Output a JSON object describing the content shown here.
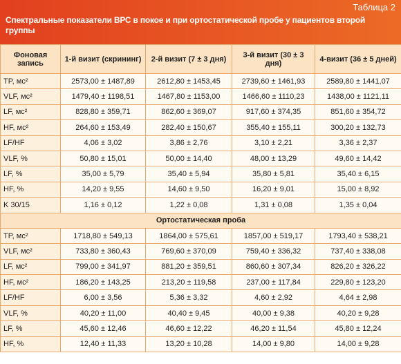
{
  "header": {
    "table_label": "Таблица 2",
    "title": "Спектральные показатели ВРС в покое и при ортостатической пробе у пациентов второй группы"
  },
  "table": {
    "columns": [
      "Фоновая запись",
      "1-й визит (скрининг)",
      "2-й визит (7 ± 3 дня)",
      "3-й визит (30 ± 3 дня)",
      "4-визит (36 ± 5 дней)"
    ],
    "rows": [
      [
        "TP, мс²",
        "2573,00 ± 1487,89",
        "2612,80 ± 1453,45",
        "2739,60 ± 1461,93",
        "2589,80 ± 1441,07"
      ],
      [
        "VLF, мс²",
        "1479,40 ± 1198,51",
        "1467,80 ± 1153,00",
        "1466,60 ± 1110,23",
        "1438,00 ± 1121,11"
      ],
      [
        "LF, мс²",
        "828,80 ± 359,71",
        "862,60 ± 369,07",
        "917,60 ± 374,35",
        "851,60 ± 354,72"
      ],
      [
        "HF, мс²",
        "264,60 ± 153,49",
        "282,40 ± 150,67",
        "355,40 ± 155,11",
        "300,20 ± 132,73"
      ],
      [
        "LF/HF",
        "4,06 ± 3,02",
        "3,86 ± 2,76",
        "3,10 ± 2,21",
        "3,36 ± 2,37"
      ],
      [
        "VLF, %",
        "50,80 ± 15,01",
        "50,00 ± 14,40",
        "48,00 ± 13,29",
        "49,60 ± 14,42"
      ],
      [
        "LF, %",
        "35,00 ± 5,79",
        "35,40 ± 5,94",
        "35,80 ± 5,81",
        "35,40 ± 6,15"
      ],
      [
        "HF, %",
        "14,20 ± 9,55",
        "14,60 ± 9,50",
        "16,20 ± 9,01",
        "15,00 ± 8,92"
      ],
      [
        "K 30/15",
        "1,16 ± 0,12",
        "1,22 ± 0,08",
        "1,31 ± 0,08",
        "1,35 ± 0,04"
      ]
    ],
    "section_title": "Ортостатическая проба",
    "section_rows": [
      [
        "TP, мс²",
        "1718,80 ± 549,13",
        "1864,00 ± 575,61",
        "1857,00 ± 519,17",
        "1793,40 ± 538,21"
      ],
      [
        "VLF, мс²",
        "733,80 ± 360,43",
        "769,60 ± 370,09",
        "759,40 ± 336,32",
        "737,40 ± 338,08"
      ],
      [
        "LF, мс²",
        "799,00 ± 341,97",
        "881,20 ± 359,51",
        "860,60 ± 307,34",
        "826,20 ± 326,22"
      ],
      [
        "HF, мс²",
        "186,20 ± 143,25",
        "213,20 ± 119,58",
        "237,00 ± 117,84",
        "229,80 ± 123,20"
      ],
      [
        "LF/HF",
        "6,00 ± 3,56",
        "5,36 ± 3,32",
        "4,60 ± 2,92",
        "4,64 ± 2,98"
      ],
      [
        "VLF, %",
        "40,20 ± 11,00",
        "40,40 ± 9,45",
        "40,00 ± 9,38",
        "40,20 ± 9,28"
      ],
      [
        "LF, %",
        "45,60 ± 12,46",
        "46,60 ± 12,22",
        "46,20 ± 11,54",
        "45,80 ± 12,24"
      ],
      [
        "HF, %",
        "12,40 ± 11,33",
        "13,20 ± 10,28",
        "14,00 ± 9,80",
        "14,00 ± 9,28"
      ]
    ]
  }
}
